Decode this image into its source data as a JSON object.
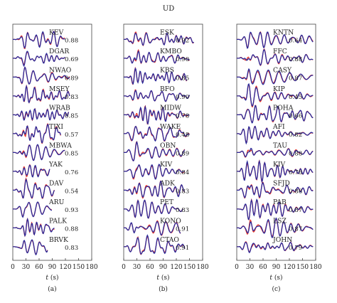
{
  "title": "UD",
  "colors": {
    "observed": "#e8352a",
    "synthetic": "#2a2a9a",
    "frame": "#444444"
  },
  "chart_data": [
    {
      "type": "line",
      "panel": "(a)",
      "xlabel_var": "t",
      "xlabel_unit": " (s)",
      "xlim": [
        0,
        180
      ],
      "xticks": [
        "0",
        "30",
        "60",
        "90",
        "120",
        "150",
        "180"
      ],
      "series_legend": [
        "observed",
        "synthetic"
      ],
      "traces": [
        {
          "station": "KEV",
          "cc": "0.88",
          "end": 120
        },
        {
          "station": "DGAR",
          "cc": "0.69",
          "end": 120
        },
        {
          "station": "NWAO",
          "cc": "0.89",
          "end": 130
        },
        {
          "station": "MSEY",
          "cc": "0.83",
          "end": 130
        },
        {
          "station": "WRAB",
          "cc": "0.85",
          "end": 128
        },
        {
          "station": "TIXI",
          "cc": "0.57",
          "end": 110
        },
        {
          "station": "MBWA",
          "cc": "0.85",
          "end": 120
        },
        {
          "station": "YAK",
          "cc": "0.76",
          "end": 85
        },
        {
          "station": "DAV",
          "cc": "0.54",
          "end": 95
        },
        {
          "station": "ARU",
          "cc": "0.93",
          "end": 90
        },
        {
          "station": "PALK",
          "cc": "0.88",
          "end": 95
        },
        {
          "station": "BRVK",
          "cc": "0.83",
          "end": 80
        }
      ]
    },
    {
      "type": "line",
      "panel": "(b)",
      "xlabel_var": "t",
      "xlabel_unit": " (s)",
      "xlim": [
        0,
        180
      ],
      "xticks": [
        "0",
        "30",
        "60",
        "90",
        "120",
        "150",
        "180"
      ],
      "series_legend": [
        "observed",
        "synthetic"
      ],
      "traces": [
        {
          "station": "ESK",
          "cc": "0.92",
          "end": 160
        },
        {
          "station": "KMBO",
          "cc": "0.90",
          "end": 150
        },
        {
          "station": "KBS",
          "cc": "0.85",
          "end": 145
        },
        {
          "station": "BFO",
          "cc": "0.90",
          "end": 150
        },
        {
          "station": "MIDW",
          "cc": "0.78",
          "end": 150
        },
        {
          "station": "WAKE",
          "cc": "0.48",
          "end": 150
        },
        {
          "station": "OBN",
          "cc": "0.89",
          "end": 140
        },
        {
          "station": "KIV",
          "cc": "0.84",
          "end": 140
        },
        {
          "station": "ADK",
          "cc": "0.83",
          "end": 140
        },
        {
          "station": "PET",
          "cc": "0.83",
          "end": 135
        },
        {
          "station": "KONO",
          "cc": "0.91",
          "end": 130
        },
        {
          "station": "CTAO",
          "cc": "0.91",
          "end": 140
        }
      ]
    },
    {
      "type": "line",
      "panel": "(c)",
      "xlabel_var": "t",
      "xlabel_unit": " (s)",
      "xlim": [
        0,
        180
      ],
      "xticks": [
        "0",
        "30",
        "60",
        "90",
        "120",
        "150",
        "180"
      ],
      "series_legend": [
        "observed",
        "synthetic"
      ],
      "traces": [
        {
          "station": "KNTN",
          "cc": "0.64",
          "end": 175
        },
        {
          "station": "FFC",
          "cc": "0.88",
          "end": 175
        },
        {
          "station": "CASY",
          "cc": "0.87",
          "end": 175
        },
        {
          "station": "KIP",
          "cc": "0.45",
          "end": 175
        },
        {
          "station": "POHA",
          "cc": "0.66",
          "end": 175
        },
        {
          "station": "AFI",
          "cc": "0.82",
          "end": 175
        },
        {
          "station": "TAU",
          "cc": "0.88",
          "end": 175
        },
        {
          "station": "KIV",
          "cc": "0.78",
          "end": 175
        },
        {
          "station": "SFJD",
          "cc": "0.88",
          "end": 175
        },
        {
          "station": "PAB",
          "cc": "0.87",
          "end": 175
        },
        {
          "station": "LSZ",
          "cc": "0.87",
          "end": 175
        },
        {
          "station": "JOHN",
          "cc": "0.79",
          "end": 175
        }
      ]
    }
  ]
}
